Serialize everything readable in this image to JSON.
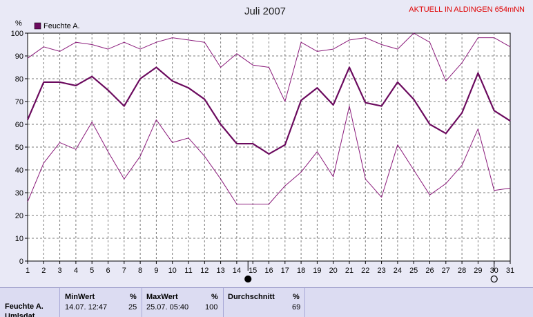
{
  "chart_data": {
    "type": "line",
    "title": "Juli 2007",
    "station_label": "AKTUELL IN ALDINGEN 654mNN",
    "ylabel": "%",
    "ylim": [
      0,
      100
    ],
    "yticks": [
      0,
      10,
      20,
      30,
      40,
      50,
      60,
      70,
      80,
      90,
      100
    ],
    "grid": true,
    "legend_position": "top-left",
    "legend": [
      {
        "label": "Feuchte A.",
        "color": "#6b0a5e"
      }
    ],
    "x": [
      1,
      2,
      3,
      4,
      5,
      6,
      7,
      8,
      9,
      10,
      11,
      12,
      13,
      14,
      15,
      16,
      17,
      18,
      19,
      20,
      21,
      22,
      23,
      24,
      25,
      26,
      27,
      28,
      29,
      30,
      31
    ],
    "series": [
      {
        "name": "Feuchte A.",
        "role": "mean",
        "color": "#6b0a5e",
        "values": [
          62,
          78.5,
          78.5,
          77,
          81,
          75,
          68,
          80,
          85,
          79,
          76,
          71,
          60,
          51.5,
          51.5,
          47,
          51,
          70.5,
          76,
          68.5,
          85,
          69.5,
          68,
          78.5,
          71,
          60,
          56,
          65,
          82.5,
          66,
          61.5
        ]
      },
      {
        "role": "max",
        "color": "#8a1a7a",
        "values": [
          89,
          94,
          92,
          96,
          95,
          93,
          96,
          93,
          96,
          98,
          97,
          96,
          85,
          91,
          86,
          85,
          70,
          96,
          92,
          93,
          97,
          98,
          95,
          93,
          100,
          96,
          79,
          87,
          98,
          98,
          94
        ]
      },
      {
        "role": "min",
        "color": "#8a1a7a",
        "values": [
          26,
          43,
          52,
          49,
          61,
          48,
          36,
          46,
          62,
          52,
          54,
          46,
          36,
          25,
          25,
          25,
          33,
          39,
          48,
          37,
          68,
          36,
          28,
          51,
          40,
          29,
          34,
          42,
          58,
          31,
          32
        ]
      }
    ],
    "markers": [
      {
        "x": 14.7,
        "type": "full-moon",
        "filled": true
      },
      {
        "x": 30,
        "type": "new-moon",
        "filled": false
      }
    ]
  },
  "stats": {
    "row_label": "Feuchte A.",
    "row_label_2": "Umlsdat",
    "min_head": "MinWert",
    "min_unit": "%",
    "min_date": "14.07.  12:47",
    "min_value": "25",
    "max_head": "MaxWert",
    "max_unit": "%",
    "max_date": "25.07.  05:40",
    "max_value": "100",
    "avg_head": "Durchschnitt",
    "avg_unit": "%",
    "avg_value": "69"
  }
}
